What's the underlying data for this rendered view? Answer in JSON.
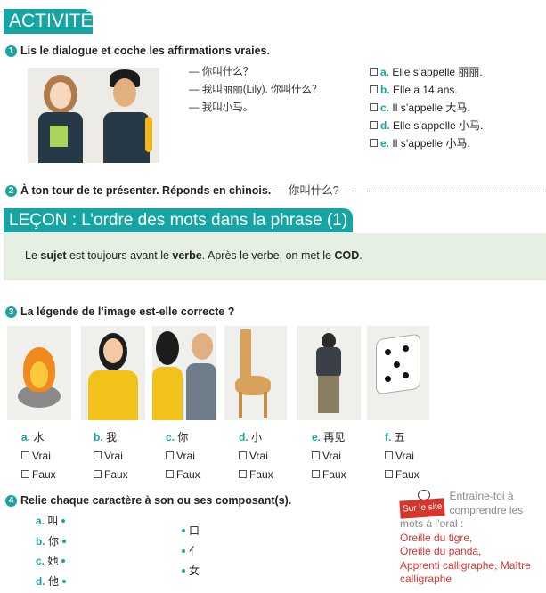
{
  "activites": {
    "title": "ACTIVITÉS"
  },
  "q1": {
    "number": "1",
    "title": "Lis le dialogue et coche les affirmations vraies.",
    "dialogue": [
      "— 你叫什么？",
      "— 我叫丽丽(Lily). 你叫什么？",
      "— 我叫小马。"
    ],
    "options": [
      {
        "letter": "a.",
        "text": "Elle s’appelle 丽丽."
      },
      {
        "letter": "b.",
        "text": "Elle a 14 ans."
      },
      {
        "letter": "c.",
        "text": "Il s’appelle 大马."
      },
      {
        "letter": "d.",
        "text": "Elle s’appelle 小马."
      },
      {
        "letter": "e.",
        "text": "Il s’appelle 小马."
      }
    ]
  },
  "q2": {
    "number": "2",
    "title": "À ton tour de te présenter. Réponds en chinois.",
    "prompt": "— 你叫什么?",
    "dash": "—"
  },
  "lecon": {
    "title": "LEÇON : L’ordre des mots dans la phrase (1)",
    "text_parts": [
      "Le ",
      "sujet",
      " est toujours avant le ",
      "verbe",
      ". Après le verbe, on met le ",
      "COD",
      "."
    ]
  },
  "q3": {
    "number": "3",
    "title": "La légende de l’image est-elle correcte ?",
    "items": [
      {
        "letter": "a.",
        "char": "水",
        "image": "fire"
      },
      {
        "letter": "b.",
        "char": "我",
        "image": "woman"
      },
      {
        "letter": "c.",
        "char": "你",
        "image": "two-people"
      },
      {
        "letter": "d.",
        "char": "小",
        "image": "giraffe"
      },
      {
        "letter": "e.",
        "char": "再见",
        "image": "man-walking"
      },
      {
        "letter": "f.",
        "char": "五",
        "image": "dice"
      }
    ],
    "true_label": "Vrai",
    "false_label": "Faux"
  },
  "q4": {
    "number": "4",
    "title": "Relie chaque caractère à son ou ses composant(s).",
    "left": [
      {
        "letter": "a.",
        "char": "叫"
      },
      {
        "letter": "b.",
        "char": "你"
      },
      {
        "letter": "c.",
        "char": "她"
      },
      {
        "letter": "d.",
        "char": "他"
      }
    ],
    "right": [
      "口",
      "亻",
      "女"
    ]
  },
  "site": {
    "badge": "Sur le site",
    "text": "Entraîne-toi à comprendre les mots à l’oral :",
    "links": [
      "Oreille du tigre,",
      "Oreille du panda,",
      "Apprenti calligraphe, Maître calligraphe"
    ]
  },
  "colors": {
    "accent": "#17a5a3",
    "link": "#d6352c",
    "lesson_bg": "#e6f0e2"
  }
}
